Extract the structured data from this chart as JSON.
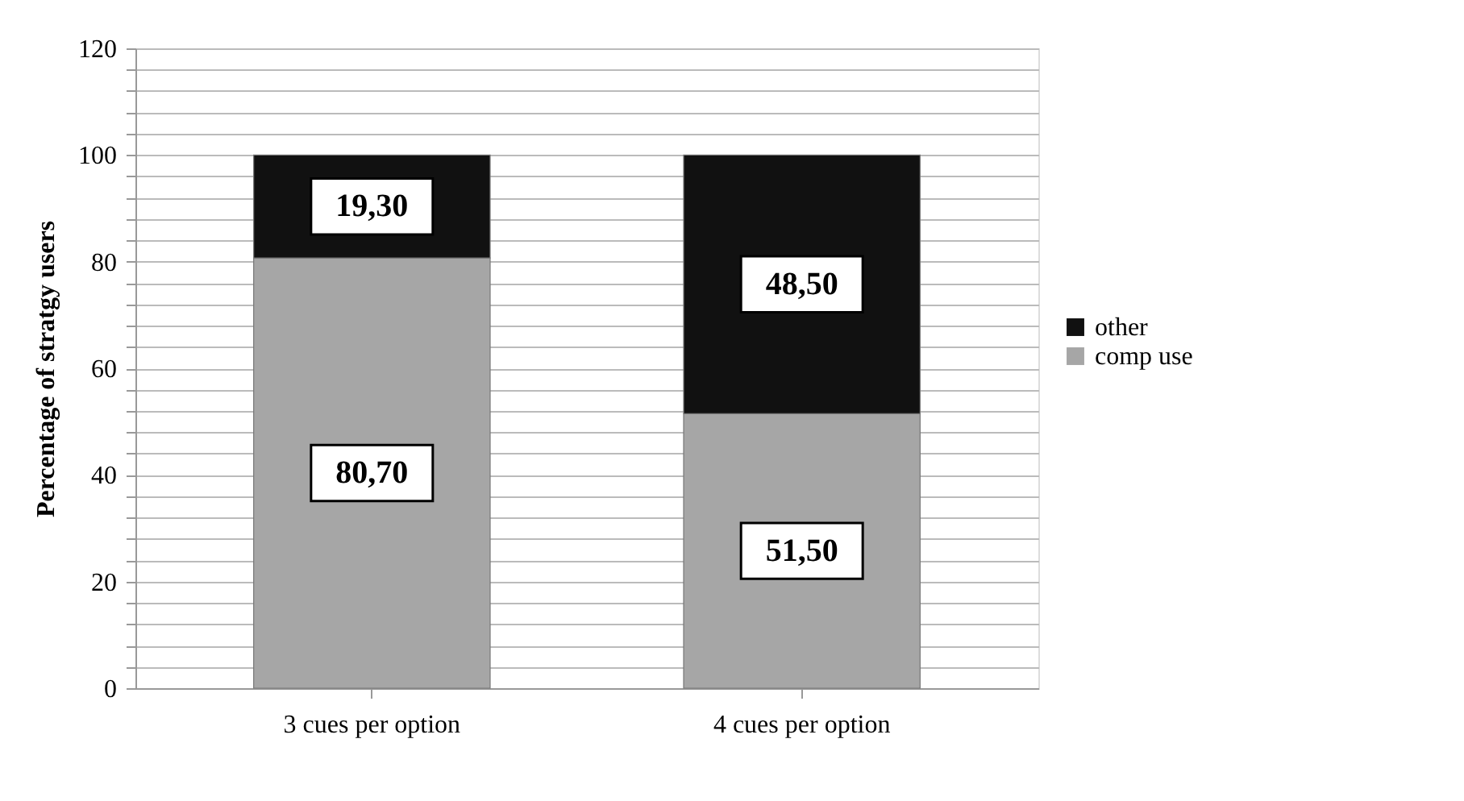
{
  "chart_data": {
    "type": "bar",
    "stacked": true,
    "categories": [
      "3 cues per option",
      "4 cues per option"
    ],
    "ylabel": "Percentage of stratgy users",
    "series": [
      {
        "name": "comp use",
        "color": "#a6a6a6",
        "values": [
          80.7,
          51.5
        ],
        "value_labels": [
          "80,70",
          "51,50"
        ]
      },
      {
        "name": "other",
        "color": "#111111",
        "values": [
          19.3,
          48.5
        ],
        "value_labels": [
          "19,30",
          "48,50"
        ]
      }
    ],
    "ylim": [
      0,
      120
    ],
    "yticks": [
      0,
      {
        "value": 4,
        "label": null
      },
      {
        "value": 8,
        "label": null
      },
      {
        "value": 12,
        "label": null
      },
      {
        "value": 16,
        "label": null
      },
      20,
      {
        "value": 24,
        "label": null
      },
      {
        "value": 28,
        "label": null
      },
      {
        "value": 32,
        "label": null
      },
      {
        "value": 36,
        "label": null
      },
      40,
      {
        "value": 44,
        "label": null
      },
      {
        "value": 48,
        "label": null
      },
      {
        "value": 52,
        "label": null
      },
      {
        "value": 56,
        "label": null
      },
      60,
      {
        "value": 64,
        "label": null
      },
      {
        "value": 68,
        "label": null
      },
      {
        "value": 72,
        "label": null
      },
      {
        "value": 76,
        "label": null
      },
      80,
      {
        "value": 84,
        "label": null
      },
      {
        "value": 88,
        "label": null
      },
      {
        "value": 92,
        "label": null
      },
      {
        "value": 96,
        "label": null
      },
      100,
      {
        "value": 104,
        "label": null
      },
      {
        "value": 108,
        "label": null
      },
      {
        "value": 112,
        "label": null
      },
      {
        "value": 116,
        "label": null
      },
      120
    ],
    "grid": "y",
    "legend": "right"
  }
}
